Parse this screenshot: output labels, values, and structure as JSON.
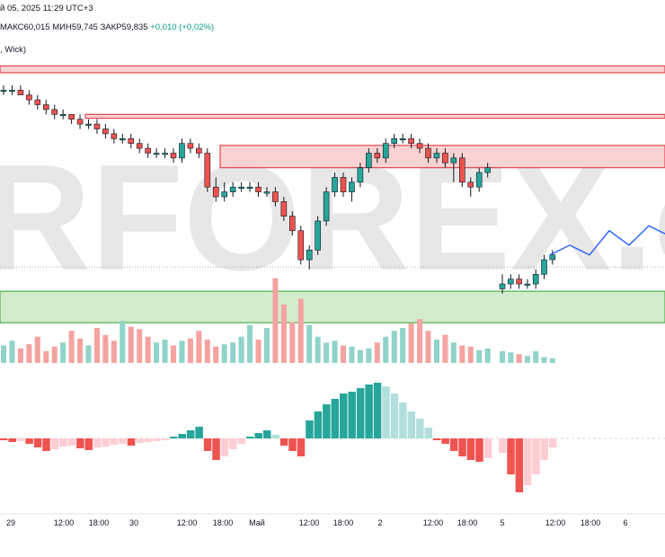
{
  "header": {
    "date_line": "й 05, 2025 11:29 UTC+3",
    "high": "МАКС60,015",
    "low": "МИН59,745",
    "close": "ЗАКР59,835",
    "change": "+0,010 (+0,02%)",
    "legend": ", Wick)"
  },
  "watermark": "RFOREX.c",
  "colors": {
    "up": "#26a69a",
    "down": "#ef5350",
    "vol_up": "#8fd3c9",
    "vol_down": "#f4a3a0",
    "resistance_fill": "#f7c4c4",
    "resistance_line": "#e0474f",
    "support_fill": "#cbe9c3",
    "support_line": "#4caf50",
    "forecast": "#2962ff",
    "hist_up_strong": "#26a69a",
    "hist_up_weak": "#b2dfdb",
    "hist_down_strong": "#ef5350",
    "hist_down_weak": "#ffcdd2"
  },
  "chart_data": {
    "type": "candlestick",
    "price_zones": {
      "resistance": [
        [
          60.21,
          60.196
        ],
        [
          60.11,
          60.102
        ],
        [
          60.046,
          60.0
        ]
      ],
      "support": [
        [
          59.745,
          59.68
        ]
      ]
    },
    "candles": [
      [
        60.16,
        60.17,
        60.15,
        60.16
      ],
      [
        60.16,
        60.17,
        60.15,
        60.16
      ],
      [
        60.16,
        60.17,
        60.15,
        60.15
      ],
      [
        60.15,
        60.16,
        60.13,
        60.14
      ],
      [
        60.14,
        60.15,
        60.12,
        60.13
      ],
      [
        60.13,
        60.14,
        60.11,
        60.12
      ],
      [
        60.12,
        60.13,
        60.1,
        60.11
      ],
      [
        60.11,
        60.12,
        60.1,
        60.11
      ],
      [
        60.11,
        60.11,
        60.09,
        60.1
      ],
      [
        60.1,
        60.11,
        60.08,
        60.09
      ],
      [
        60.09,
        60.1,
        60.08,
        60.09
      ],
      [
        60.09,
        60.1,
        60.07,
        60.08
      ],
      [
        60.08,
        60.09,
        60.06,
        60.07
      ],
      [
        60.07,
        60.08,
        60.05,
        60.06
      ],
      [
        60.06,
        60.07,
        60.05,
        60.06
      ],
      [
        60.06,
        60.07,
        60.04,
        60.05
      ],
      [
        60.05,
        60.06,
        60.03,
        60.04
      ],
      [
        60.04,
        60.05,
        60.02,
        60.03
      ],
      [
        60.03,
        60.04,
        60.02,
        60.03
      ],
      [
        60.03,
        60.04,
        60.02,
        60.03
      ],
      [
        60.03,
        60.04,
        60.01,
        60.02
      ],
      [
        60.02,
        60.06,
        60.01,
        60.05
      ],
      [
        60.05,
        60.06,
        60.03,
        60.04
      ],
      [
        60.04,
        60.05,
        60.02,
        60.03
      ],
      [
        60.03,
        60.04,
        59.95,
        59.96
      ],
      [
        59.96,
        59.98,
        59.93,
        59.94
      ],
      [
        59.94,
        59.97,
        59.93,
        59.95
      ],
      [
        59.95,
        59.97,
        59.94,
        59.96
      ],
      [
        59.96,
        59.97,
        59.95,
        59.96
      ],
      [
        59.96,
        59.97,
        59.95,
        59.96
      ],
      [
        59.96,
        59.97,
        59.94,
        59.95
      ],
      [
        59.95,
        59.96,
        59.94,
        59.95
      ],
      [
        59.95,
        59.96,
        59.92,
        59.93
      ],
      [
        59.93,
        59.94,
        59.89,
        59.9
      ],
      [
        59.9,
        59.91,
        59.86,
        59.87
      ],
      [
        59.87,
        59.88,
        59.8,
        59.81
      ],
      [
        59.81,
        59.84,
        59.79,
        59.83
      ],
      [
        59.83,
        59.9,
        59.82,
        59.89
      ],
      [
        59.89,
        59.96,
        59.88,
        59.95
      ],
      [
        59.95,
        59.99,
        59.94,
        59.98
      ],
      [
        59.98,
        59.99,
        59.94,
        59.95
      ],
      [
        59.95,
        59.98,
        59.93,
        59.97
      ],
      [
        59.97,
        60.01,
        59.96,
        60.0
      ],
      [
        60.0,
        60.04,
        59.99,
        60.03
      ],
      [
        60.03,
        60.04,
        60.01,
        60.02
      ],
      [
        60.02,
        60.06,
        60.01,
        60.05
      ],
      [
        60.05,
        60.07,
        60.04,
        60.06
      ],
      [
        60.06,
        60.07,
        60.05,
        60.06
      ],
      [
        60.06,
        60.07,
        60.04,
        60.05
      ],
      [
        60.05,
        60.06,
        60.03,
        60.04
      ],
      [
        60.04,
        60.05,
        60.01,
        60.02
      ],
      [
        60.02,
        60.04,
        60.01,
        60.03
      ],
      [
        60.03,
        60.04,
        60.0,
        60.01
      ],
      [
        60.01,
        60.03,
        59.97,
        60.02
      ],
      [
        60.02,
        60.03,
        59.96,
        59.97
      ],
      [
        59.97,
        59.98,
        59.94,
        59.96
      ],
      [
        59.96,
        60.0,
        59.95,
        59.99
      ],
      [
        59.99,
        60.01,
        59.98,
        60.0
      ],
      [
        59.75,
        59.78,
        59.74,
        59.76
      ],
      [
        59.76,
        59.78,
        59.75,
        59.77
      ],
      [
        59.77,
        59.78,
        59.75,
        59.76
      ],
      [
        59.76,
        59.77,
        59.75,
        59.76
      ],
      [
        59.76,
        59.79,
        59.75,
        59.78
      ],
      [
        59.78,
        59.82,
        59.77,
        59.81
      ],
      [
        59.81,
        59.83,
        59.8,
        59.82
      ]
    ],
    "volume": [
      30,
      38,
      25,
      32,
      45,
      20,
      28,
      35,
      55,
      42,
      30,
      60,
      48,
      38,
      72,
      62,
      58,
      45,
      35,
      40,
      30,
      38,
      42,
      55,
      40,
      28,
      32,
      35,
      45,
      65,
      40,
      60,
      145,
      100,
      70,
      110,
      65,
      45,
      35,
      38,
      30,
      28,
      22,
      25,
      35,
      45,
      55,
      60,
      68,
      75,
      55,
      40,
      48,
      35,
      30,
      28,
      22,
      25,
      20,
      18,
      15,
      12,
      20,
      10,
      8
    ],
    "oscillator": [
      -2,
      -4,
      -3,
      -6,
      -10,
      -14,
      -12,
      -9,
      -8,
      -11,
      -13,
      -10,
      -9,
      -7,
      -6,
      -8,
      -5,
      -4,
      -3,
      -2,
      2,
      5,
      9,
      13,
      -14,
      -24,
      -20,
      -12,
      -6,
      2,
      6,
      9,
      4,
      -8,
      -14,
      -20,
      20,
      30,
      38,
      44,
      50,
      52,
      56,
      60,
      62,
      58,
      50,
      40,
      30,
      22,
      12,
      -2,
      -6,
      -14,
      -20,
      -24,
      -26,
      -22,
      -16,
      -40,
      -60,
      -52,
      -40,
      -24,
      -10
    ],
    "forecast": [
      [
        59.82,
        59.84
      ],
      [
        59.84,
        59.82
      ],
      [
        59.82,
        59.87
      ],
      [
        59.87,
        59.84
      ],
      [
        59.84,
        59.88
      ],
      [
        59.88,
        59.86
      ]
    ],
    "x_ticks": [
      "29",
      "12:00",
      "18:00",
      "30",
      "12:00",
      "18:00",
      "Май",
      "12:00",
      "18:00",
      "2",
      "12:00",
      "18:00",
      "5",
      "12:00",
      "18:00",
      "6"
    ]
  }
}
